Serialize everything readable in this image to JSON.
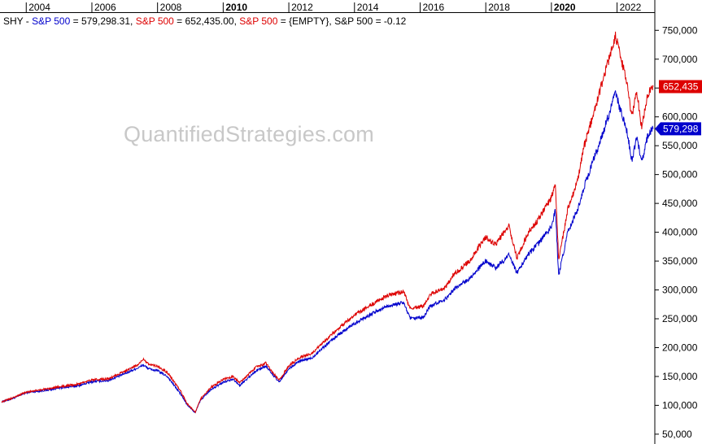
{
  "legend": {
    "prefix": "SHY - ",
    "s1_name": "S&P 500",
    "s1_value": " = 579,298.31, ",
    "s2_name": "S&P 500",
    "s2_value": " = 652,435.00, ",
    "s3_name": "S&P 500",
    "s3_value": " = {EMPTY}, ",
    "s4_text": "S&P 500 = -0.12"
  },
  "watermark": "QuantifiedStrategies.com",
  "chart_data": {
    "type": "line",
    "y_axis_side": "right",
    "ylim": [
      40000,
      780000
    ],
    "yticks": [
      50000,
      100000,
      150000,
      200000,
      250000,
      300000,
      350000,
      400000,
      450000,
      500000,
      550000,
      600000,
      650000,
      700000,
      750000
    ],
    "ytick_labels": [
      "50,000",
      "100,000",
      "150,000",
      "200,000",
      "250,000",
      "300,000",
      "350,000",
      "400,000",
      "450,000",
      "500,000",
      "550,000",
      "600,000",
      "650,000",
      "700,000",
      "750,000"
    ],
    "xlim": [
      2003.25,
      2023.15
    ],
    "xticks": [
      2004,
      2006,
      2008,
      2010,
      2012,
      2014,
      2016,
      2018,
      2020,
      2022
    ],
    "xtick_labels": [
      "2004",
      "2006",
      "2008",
      "2010",
      "2012",
      "2014",
      "2016",
      "2018",
      "2020",
      "2022"
    ],
    "xticks_bold": [
      "2010",
      "2020"
    ],
    "grid": false,
    "series": [
      {
        "color": "#0000cc",
        "last_value_label": "579,298",
        "x": [
          2003.25,
          2003.6,
          2004.0,
          2004.6,
          2005.0,
          2005.6,
          2006.0,
          2006.5,
          2007.0,
          2007.45,
          2007.55,
          2007.75,
          2008.0,
          2008.3,
          2008.7,
          2008.9,
          2009.15,
          2009.3,
          2009.6,
          2010.0,
          2010.3,
          2010.5,
          2011.0,
          2011.3,
          2011.7,
          2012.0,
          2012.3,
          2012.7,
          2013.0,
          2013.5,
          2014.0,
          2014.5,
          2015.0,
          2015.5,
          2015.7,
          2016.1,
          2016.3,
          2016.8,
          2017.0,
          2017.5,
          2018.0,
          2018.3,
          2018.7,
          2018.95,
          2019.3,
          2019.6,
          2020.0,
          2020.12,
          2020.22,
          2020.5,
          2020.8,
          2021.0,
          2021.5,
          2021.95,
          2022.3,
          2022.45,
          2022.6,
          2022.75,
          2022.9,
          2023.0,
          2023.1
        ],
        "y": [
          106000,
          112000,
          122000,
          126000,
          130000,
          134000,
          141000,
          143000,
          155000,
          166000,
          170000,
          163000,
          160000,
          150000,
          120000,
          101000,
          87000,
          108000,
          126000,
          140000,
          146000,
          134000,
          160000,
          168000,
          140000,
          163000,
          176000,
          182000,
          198000,
          222000,
          242000,
          258000,
          272000,
          278000,
          250000,
          252000,
          272000,
          285000,
          300000,
          320000,
          350000,
          338000,
          360000,
          330000,
          362000,
          380000,
          410000,
          440000,
          325000,
          400000,
          440000,
          480000,
          560000,
          640000,
          575000,
          525000,
          565000,
          520000,
          560000,
          575000,
          579298
        ]
      },
      {
        "color": "#dd0000",
        "last_value_label": "652,435",
        "x": [
          2003.25,
          2003.6,
          2004.0,
          2004.6,
          2005.0,
          2005.6,
          2006.0,
          2006.5,
          2007.0,
          2007.45,
          2007.55,
          2007.75,
          2008.0,
          2008.3,
          2008.7,
          2008.9,
          2009.15,
          2009.3,
          2009.6,
          2010.0,
          2010.3,
          2010.5,
          2011.0,
          2011.3,
          2011.7,
          2012.0,
          2012.3,
          2012.7,
          2013.0,
          2013.5,
          2014.0,
          2014.5,
          2015.0,
          2015.5,
          2015.7,
          2016.1,
          2016.3,
          2016.8,
          2017.0,
          2017.5,
          2018.0,
          2018.3,
          2018.7,
          2018.95,
          2019.3,
          2019.6,
          2020.0,
          2020.12,
          2020.22,
          2020.5,
          2020.8,
          2021.0,
          2021.5,
          2021.95,
          2022.3,
          2022.45,
          2022.6,
          2022.75,
          2022.9,
          2023.0,
          2023.1
        ],
        "y": [
          106000,
          113000,
          123000,
          128000,
          132000,
          137000,
          144000,
          146000,
          159000,
          172000,
          180000,
          170000,
          168000,
          157000,
          125000,
          103000,
          88000,
          110000,
          130000,
          145000,
          150000,
          139000,
          166000,
          173000,
          143000,
          168000,
          182000,
          190000,
          206000,
          233000,
          256000,
          274000,
          290000,
          297000,
          268000,
          272000,
          292000,
          306000,
          325000,
          350000,
          392000,
          378000,
          412000,
          355000,
          400000,
          422000,
          460000,
          488000,
          350000,
          440000,
          490000,
          550000,
          650000,
          740000,
          660000,
          600000,
          645000,
          580000,
          630000,
          645000,
          652435
        ]
      }
    ]
  }
}
